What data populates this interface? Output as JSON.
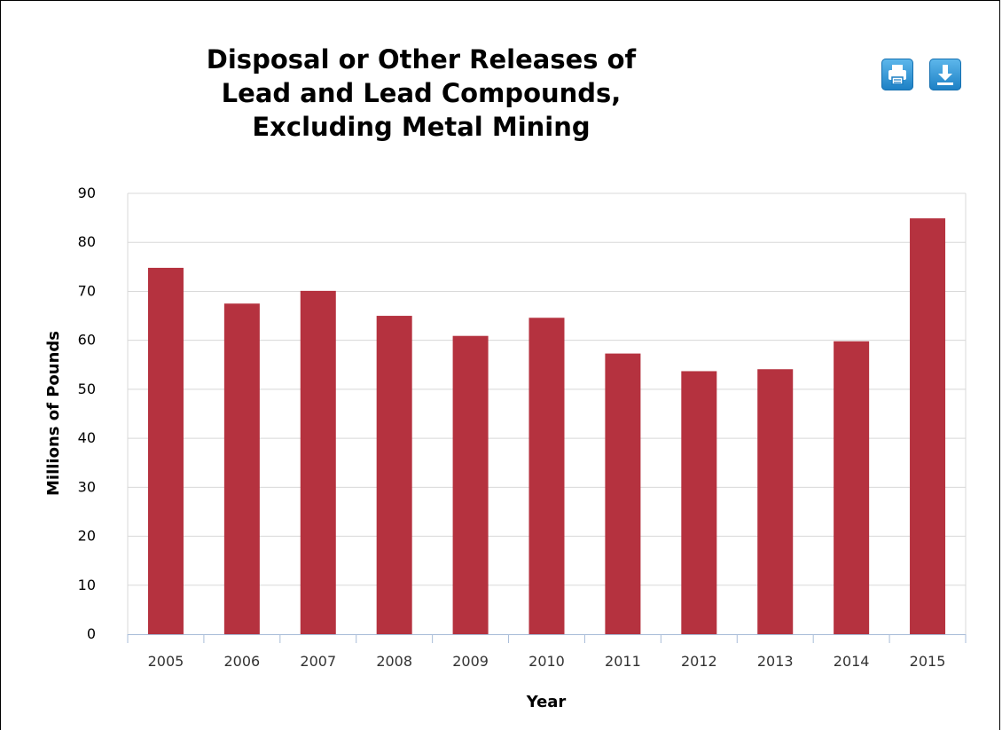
{
  "chart_data": {
    "type": "bar",
    "title_lines": [
      "Disposal or Other Releases of",
      "Lead and Lead Compounds,",
      "Excluding Metal Mining"
    ],
    "xlabel": "Year",
    "ylabel": "Millions of Pounds",
    "categories": [
      "2005",
      "2006",
      "2007",
      "2008",
      "2009",
      "2010",
      "2011",
      "2012",
      "2013",
      "2014",
      "2015"
    ],
    "values": [
      74.8,
      67.5,
      70.1,
      65.0,
      60.9,
      64.6,
      57.3,
      53.7,
      54.1,
      59.8,
      84.9
    ],
    "ylim": [
      0,
      90
    ],
    "yticks": [
      "0",
      "10",
      "20",
      "30",
      "40",
      "50",
      "60",
      "70",
      "80",
      "90"
    ],
    "grid": true,
    "bar_color": "#b5323f"
  },
  "toolbar": {
    "print_icon": "print-icon",
    "download_icon": "download-icon",
    "button_color": "#2a8fd6"
  }
}
